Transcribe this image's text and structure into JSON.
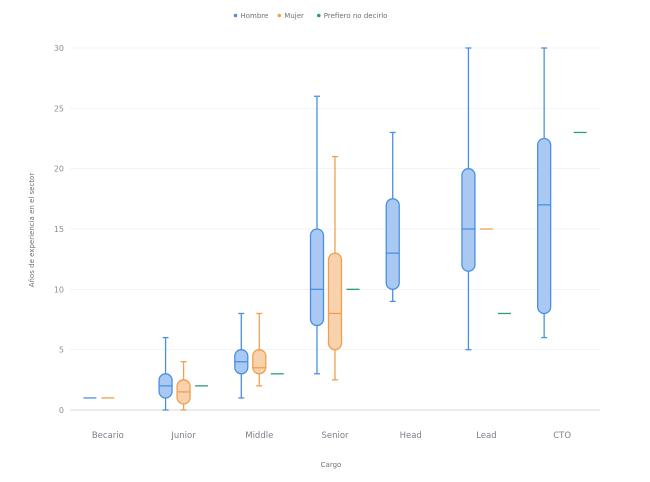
{
  "chart_data": {
    "type": "box",
    "xlabel": "Cargo",
    "ylabel": "Años de experiencia en el sector",
    "ylim": [
      0,
      30
    ],
    "yticks": [
      0,
      5,
      10,
      15,
      20,
      25,
      30
    ],
    "grid": true,
    "legend_position": "top-center",
    "categories": [
      "Becario",
      "Junior",
      "Middle",
      "Senior",
      "Head",
      "Lead",
      "CTO"
    ],
    "series": [
      {
        "name": "Hombre",
        "color": "#4a90e2",
        "fill": "#a9c9f3",
        "boxes": [
          {
            "category": "Becario",
            "min": 1,
            "q1": 1,
            "median": 1,
            "q3": 1,
            "max": 1
          },
          {
            "category": "Junior",
            "min": 0,
            "q1": 1,
            "median": 2,
            "q3": 3,
            "max": 6
          },
          {
            "category": "Middle",
            "min": 1,
            "q1": 3,
            "median": 4,
            "q3": 5,
            "max": 8
          },
          {
            "category": "Senior",
            "min": 3,
            "q1": 7,
            "median": 10,
            "q3": 15,
            "max": 26
          },
          {
            "category": "Head",
            "min": 9,
            "q1": 10,
            "median": 13,
            "q3": 17.5,
            "max": 23
          },
          {
            "category": "Lead",
            "min": 5,
            "q1": 11.5,
            "median": 15,
            "q3": 20,
            "max": 30
          },
          {
            "category": "CTO",
            "min": 6,
            "q1": 8,
            "median": 17,
            "q3": 22.5,
            "max": 30
          }
        ]
      },
      {
        "name": "Mujer",
        "color": "#f0a050",
        "fill": "#f8d2ac",
        "boxes": [
          {
            "category": "Becario",
            "min": 1,
            "q1": 1,
            "median": 1,
            "q3": 1,
            "max": 1
          },
          {
            "category": "Junior",
            "min": 0,
            "q1": 0.5,
            "median": 1.5,
            "q3": 2.5,
            "max": 4
          },
          {
            "category": "Middle",
            "min": 2,
            "q1": 3,
            "median": 3.5,
            "q3": 5,
            "max": 8
          },
          {
            "category": "Senior",
            "min": 2.5,
            "q1": 5,
            "median": 8,
            "q3": 13,
            "max": 21
          },
          {
            "category": "Lead",
            "min": 15,
            "q1": 15,
            "median": 15,
            "q3": 15,
            "max": 15
          }
        ]
      },
      {
        "name": "Prefiero no decirlo",
        "color": "#2a9d74",
        "fill": "#9fd6c3",
        "boxes": [
          {
            "category": "Junior",
            "min": 2,
            "q1": 2,
            "median": 2,
            "q3": 2,
            "max": 2
          },
          {
            "category": "Middle",
            "min": 3,
            "q1": 3,
            "median": 3,
            "q3": 3,
            "max": 3
          },
          {
            "category": "Senior",
            "min": 10,
            "q1": 10,
            "median": 10,
            "q3": 10,
            "max": 10
          },
          {
            "category": "Lead",
            "min": 8,
            "q1": 8,
            "median": 8,
            "q3": 8,
            "max": 8
          },
          {
            "category": "CTO",
            "min": 23,
            "q1": 23,
            "median": 23,
            "q3": 23,
            "max": 23
          }
        ]
      }
    ]
  }
}
